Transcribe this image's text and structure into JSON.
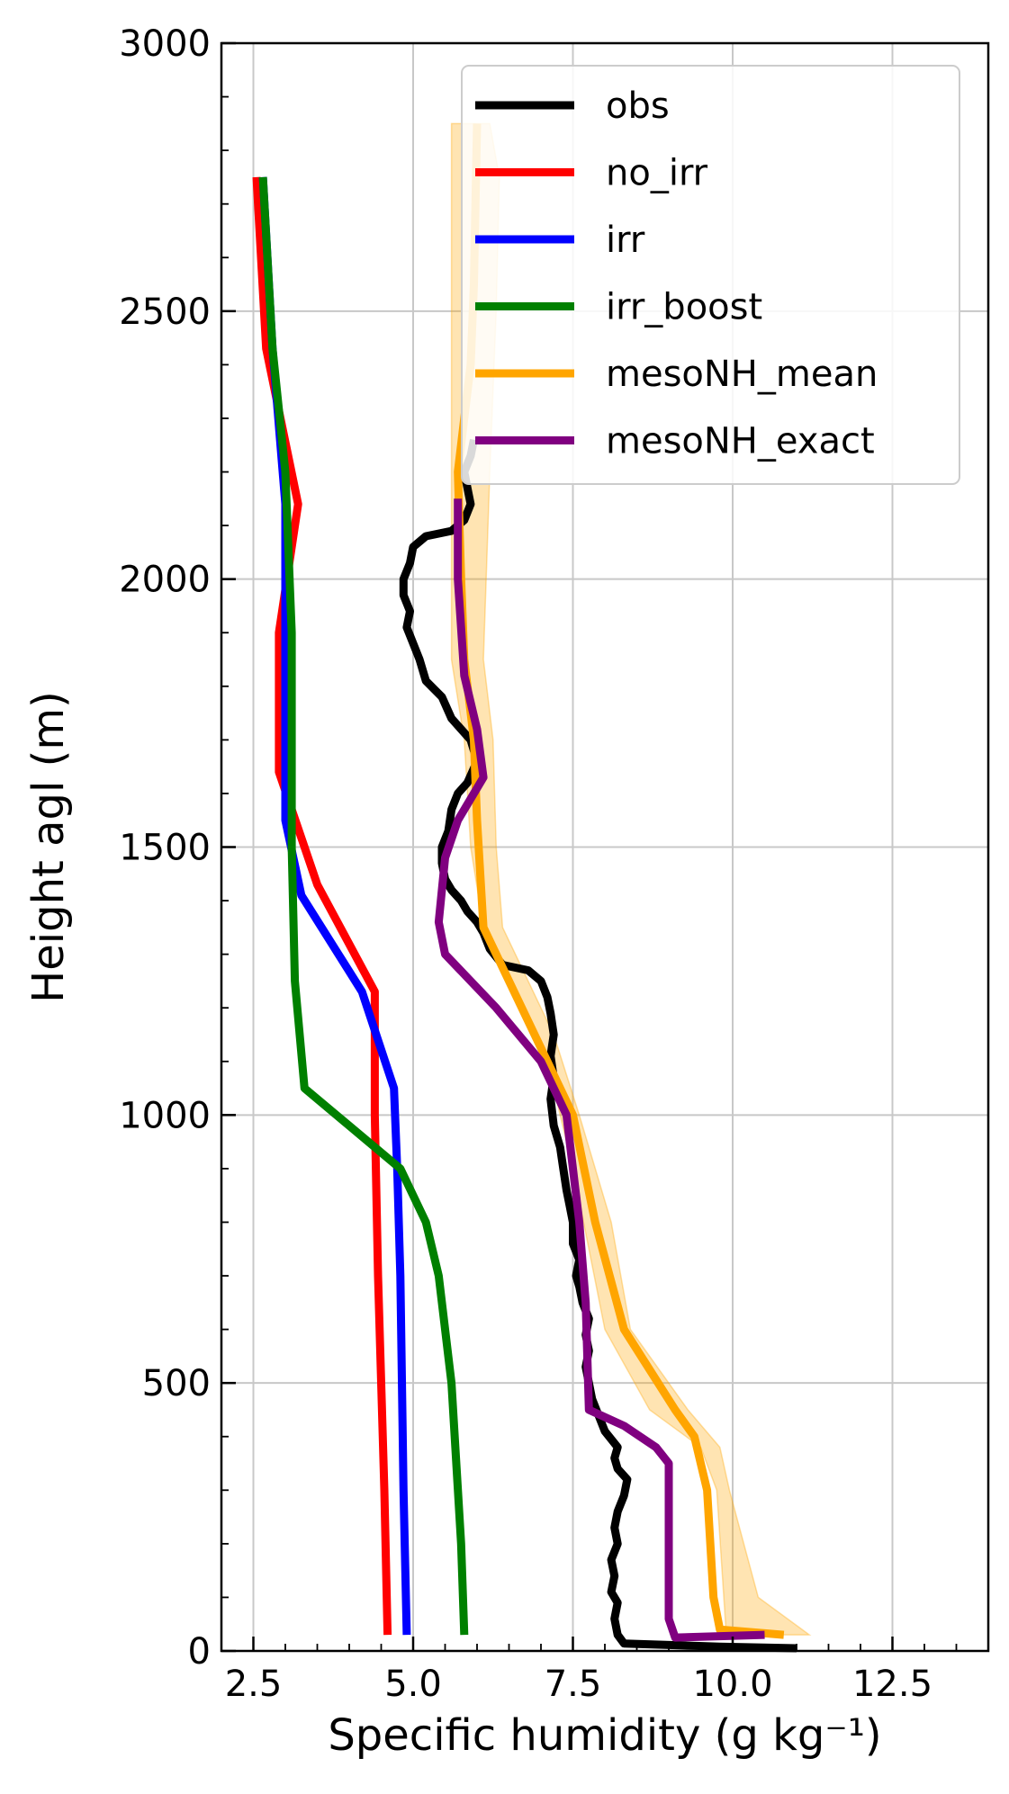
{
  "chart_data": {
    "type": "line",
    "title": "",
    "xlabel": "Specific humidity (g kg⁻¹)",
    "ylabel": "Height agl (m)",
    "xlim": [
      2.0,
      14.0
    ],
    "ylim": [
      0,
      3000
    ],
    "x_ticks": [
      "2.5",
      "5.0",
      "7.5",
      "10.0",
      "12.5"
    ],
    "y_ticks": [
      "0",
      "500",
      "1000",
      "1500",
      "2000",
      "2500",
      "3000"
    ],
    "grid": true,
    "legend_position": "top-right",
    "series": [
      {
        "name": "obs",
        "color": "#000000",
        "points": [
          [
            11.0,
            5
          ],
          [
            9.8,
            8
          ],
          [
            8.3,
            14
          ],
          [
            8.2,
            30
          ],
          [
            8.15,
            60
          ],
          [
            8.2,
            90
          ],
          [
            8.1,
            110
          ],
          [
            8.15,
            140
          ],
          [
            8.1,
            170
          ],
          [
            8.2,
            200
          ],
          [
            8.15,
            230
          ],
          [
            8.2,
            260
          ],
          [
            8.3,
            290
          ],
          [
            8.35,
            320
          ],
          [
            8.2,
            340
          ],
          [
            8.15,
            360
          ],
          [
            8.2,
            380
          ],
          [
            8.0,
            410
          ],
          [
            7.9,
            440
          ],
          [
            7.8,
            470
          ],
          [
            7.75,
            500
          ],
          [
            7.7,
            530
          ],
          [
            7.75,
            560
          ],
          [
            7.7,
            590
          ],
          [
            7.75,
            620
          ],
          [
            7.65,
            650
          ],
          [
            7.6,
            680
          ],
          [
            7.55,
            700
          ],
          [
            7.6,
            730
          ],
          [
            7.5,
            760
          ],
          [
            7.5,
            800
          ],
          [
            7.45,
            830
          ],
          [
            7.4,
            860
          ],
          [
            7.35,
            900
          ],
          [
            7.3,
            940
          ],
          [
            7.2,
            980
          ],
          [
            7.15,
            1030
          ],
          [
            7.2,
            1070
          ],
          [
            7.15,
            1110
          ],
          [
            7.2,
            1150
          ],
          [
            7.15,
            1190
          ],
          [
            7.1,
            1220
          ],
          [
            7.0,
            1250
          ],
          [
            6.8,
            1270
          ],
          [
            6.4,
            1280
          ],
          [
            6.2,
            1310
          ],
          [
            6.1,
            1340
          ],
          [
            6.0,
            1360
          ],
          [
            5.85,
            1380
          ],
          [
            5.75,
            1400
          ],
          [
            5.6,
            1420
          ],
          [
            5.5,
            1440
          ],
          [
            5.45,
            1470
          ],
          [
            5.45,
            1500
          ],
          [
            5.55,
            1530
          ],
          [
            5.6,
            1570
          ],
          [
            5.7,
            1600
          ],
          [
            5.85,
            1620
          ],
          [
            6.0,
            1660
          ],
          [
            5.9,
            1700
          ],
          [
            5.6,
            1740
          ],
          [
            5.45,
            1780
          ],
          [
            5.2,
            1810
          ],
          [
            5.1,
            1850
          ],
          [
            5.0,
            1880
          ],
          [
            4.9,
            1910
          ],
          [
            4.95,
            1940
          ],
          [
            4.85,
            1970
          ],
          [
            4.85,
            2000
          ],
          [
            4.95,
            2030
          ],
          [
            5.0,
            2060
          ],
          [
            5.2,
            2080
          ],
          [
            5.6,
            2090
          ],
          [
            5.8,
            2110
          ],
          [
            5.9,
            2140
          ],
          [
            5.85,
            2170
          ],
          [
            5.8,
            2200
          ],
          [
            5.9,
            2230
          ],
          [
            5.95,
            2260
          ]
        ]
      },
      {
        "name": "no_irr",
        "color": "#ff0000",
        "points": [
          [
            4.6,
            30
          ],
          [
            4.55,
            300
          ],
          [
            4.45,
            700
          ],
          [
            4.4,
            1000
          ],
          [
            4.4,
            1230
          ],
          [
            3.5,
            1430
          ],
          [
            2.9,
            1640
          ],
          [
            2.9,
            1900
          ],
          [
            3.2,
            2140
          ],
          [
            2.7,
            2430
          ],
          [
            2.55,
            2750
          ]
        ]
      },
      {
        "name": "irr",
        "color": "#0000ff",
        "points": [
          [
            4.9,
            30
          ],
          [
            4.85,
            300
          ],
          [
            4.8,
            700
          ],
          [
            4.75,
            900
          ],
          [
            4.7,
            1050
          ],
          [
            4.2,
            1230
          ],
          [
            3.25,
            1410
          ],
          [
            3.0,
            1550
          ],
          [
            3.0,
            1900
          ],
          [
            3.0,
            2140
          ],
          [
            2.8,
            2430
          ],
          [
            2.65,
            2750
          ]
        ]
      },
      {
        "name": "irr_boost",
        "color": "#008000",
        "points": [
          [
            5.8,
            30
          ],
          [
            5.75,
            200
          ],
          [
            5.6,
            500
          ],
          [
            5.4,
            700
          ],
          [
            5.2,
            800
          ],
          [
            4.8,
            900
          ],
          [
            3.3,
            1050
          ],
          [
            3.15,
            1250
          ],
          [
            3.1,
            1500
          ],
          [
            3.1,
            1900
          ],
          [
            3.0,
            2200
          ],
          [
            2.8,
            2430
          ],
          [
            2.65,
            2750
          ]
        ]
      },
      {
        "name": "mesoNH_mean",
        "color": "#ffa500",
        "band": {
          "color": "#ffa500",
          "lower": [
            [
              9.9,
              30
            ],
            [
              9.75,
              300
            ],
            [
              9.5,
              380
            ],
            [
              8.7,
              450
            ],
            [
              8.0,
              600
            ],
            [
              7.5,
              900
            ],
            [
              7.1,
              1100
            ],
            [
              6.7,
              1200
            ],
            [
              6.1,
              1350
            ],
            [
              5.9,
              1500
            ],
            [
              5.8,
              1700
            ],
            [
              5.6,
              1850
            ],
            [
              5.6,
              2200
            ],
            [
              5.6,
              2500
            ],
            [
              5.6,
              2850
            ]
          ],
          "upper": [
            [
              11.2,
              30
            ],
            [
              10.4,
              100
            ],
            [
              9.95,
              300
            ],
            [
              9.8,
              380
            ],
            [
              9.3,
              450
            ],
            [
              8.4,
              600
            ],
            [
              8.1,
              800
            ],
            [
              7.6,
              1000
            ],
            [
              7.2,
              1150
            ],
            [
              6.4,
              1350
            ],
            [
              6.3,
              1500
            ],
            [
              6.25,
              1700
            ],
            [
              6.1,
              1850
            ],
            [
              6.2,
              2200
            ],
            [
              6.3,
              2500
            ],
            [
              6.35,
              2750
            ],
            [
              6.2,
              2850
            ]
          ]
        },
        "points": [
          [
            10.8,
            30
          ],
          [
            9.8,
            40
          ],
          [
            9.7,
            100
          ],
          [
            9.6,
            300
          ],
          [
            9.4,
            400
          ],
          [
            9.1,
            450
          ],
          [
            8.3,
            600
          ],
          [
            7.85,
            800
          ],
          [
            7.5,
            1000
          ],
          [
            6.5,
            1250
          ],
          [
            6.1,
            1350
          ],
          [
            6.0,
            1550
          ],
          [
            5.95,
            1700
          ],
          [
            5.8,
            1850
          ],
          [
            5.75,
            2000
          ],
          [
            5.7,
            2200
          ],
          [
            5.9,
            2400
          ],
          [
            5.95,
            2550
          ],
          [
            6.0,
            2850
          ]
        ]
      },
      {
        "name": "mesoNH_exact",
        "color": "#800080",
        "points": [
          [
            10.5,
            30
          ],
          [
            9.1,
            25
          ],
          [
            9.0,
            60
          ],
          [
            9.0,
            300
          ],
          [
            9.0,
            350
          ],
          [
            8.8,
            380
          ],
          [
            8.3,
            420
          ],
          [
            7.75,
            450
          ],
          [
            7.7,
            650
          ],
          [
            7.6,
            800
          ],
          [
            7.5,
            900
          ],
          [
            7.4,
            1000
          ],
          [
            7.0,
            1100
          ],
          [
            6.3,
            1200
          ],
          [
            5.5,
            1300
          ],
          [
            5.4,
            1360
          ],
          [
            5.5,
            1480
          ],
          [
            5.7,
            1550
          ],
          [
            6.1,
            1630
          ],
          [
            6.0,
            1720
          ],
          [
            5.8,
            1820
          ],
          [
            5.7,
            2000
          ],
          [
            5.7,
            2150
          ]
        ]
      }
    ]
  }
}
